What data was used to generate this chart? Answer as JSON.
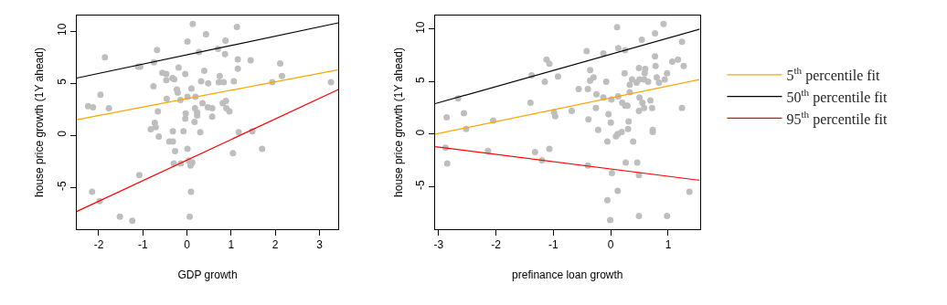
{
  "chart_data": [
    {
      "type": "scatter",
      "xlabel": "GDP growth",
      "ylabel": "house price growth (1Y ahead)",
      "xlim": [
        -2.5,
        3.43
      ],
      "xticks": [
        -2,
        -1,
        0,
        1,
        2,
        3
      ],
      "ylim": [
        -9.0,
        11.5
      ],
      "yticks": [
        -5,
        0,
        5,
        10
      ],
      "legend": "right",
      "series": [
        {
          "marker": "circle",
          "color": "#bebebe",
          "x": [
            0.13,
            1.13,
            0.43,
            0.01,
            0.87,
            -0.68,
            0.27,
            0.7,
            0.86,
            -1.86,
            1.15,
            1.44,
            -0.75,
            2.11,
            -1.11,
            -1.06,
            -0.19,
            1.15,
            0.39,
            -0.56,
            -0.47,
            -0.04,
            0.74,
            -0.33,
            2.15,
            0.32,
            -0.47,
            -0.29,
            0.48,
            0.72,
            0.83,
            1.06,
            1.93,
            3.26,
            -0.76,
            0.1,
            -0.23,
            -0.21,
            -1.96,
            0.01,
            0.19,
            -0.46,
            -0.15,
            0.88,
            0.35,
            0.81,
            -2.24,
            -2.13,
            -1.77,
            0.18,
            0.47,
            0.57,
            0.89,
            -0.66,
            0.23,
            0.96,
            -0.03,
            0.23,
            0.57,
            -0.04,
            0.17,
            -0.73,
            -0.71,
            -0.82,
            -0.08,
            -0.32,
            1.48,
            1.17,
            0.3,
            -0.64,
            -0.4,
            -0.32,
            0.01,
            1.7,
            -0.27,
            1.04,
            -0.3,
            -0.14,
            0.04,
            0.12,
            0.08,
            -1.08,
            -2.15,
            0.09,
            -1.98,
            -1.52,
            -1.24,
            0.06
          ],
          "values": [
            10.7,
            10.4,
            9.7,
            9.0,
            9.1,
            8.2,
            8.0,
            8.3,
            7.8,
            7.5,
            7.3,
            7.2,
            7.0,
            6.9,
            6.6,
            6.6,
            6.5,
            6.4,
            6.2,
            6.0,
            5.9,
            5.9,
            5.7,
            5.5,
            5.7,
            5.2,
            5.3,
            5.4,
            5.0,
            5.1,
            5.1,
            5.2,
            5.1,
            5.1,
            4.7,
            4.5,
            4.4,
            4.1,
            3.9,
            3.7,
            3.7,
            3.5,
            3.4,
            3.3,
            3.1,
            3.1,
            2.8,
            2.7,
            2.6,
            2.6,
            2.7,
            2.6,
            2.6,
            2.3,
            2.2,
            2.3,
            2.1,
            1.9,
            1.8,
            1.6,
            1.3,
            1.2,
            0.8,
            0.6,
            0.4,
            0.4,
            0.4,
            0.3,
            0.3,
            -0.1,
            -0.6,
            -0.6,
            -1.3,
            -1.3,
            -1.5,
            -1.7,
            -2.7,
            -2.7,
            -2.4,
            -2.6,
            -2.9,
            -3.8,
            -5.4,
            -5.4,
            -6.3,
            -7.8,
            -8.2,
            -7.8
          ]
        },
        {
          "type": "line",
          "name": "5$^{th}$ percentile fit",
          "color": "#ffa500",
          "x": [
            -2.5,
            3.43
          ],
          "values": [
            1.5,
            6.3
          ]
        },
        {
          "type": "line",
          "name": "50$^{th}$ percentile fit",
          "color": "#000000",
          "x": [
            -2.5,
            3.43
          ],
          "values": [
            5.5,
            10.8
          ]
        },
        {
          "type": "line",
          "name": "95$^{th}$ percentile fit",
          "color": "#ff0000",
          "x": [
            -2.5,
            3.43
          ],
          "values": [
            -7.3,
            4.4
          ]
        }
      ]
    },
    {
      "type": "scatter",
      "xlabel": "prefinance loan growth",
      "ylabel": "house price growth (1Y ahead)",
      "xlim": [
        -3.06,
        1.55
      ],
      "xticks": [
        -3,
        -2,
        -1,
        0,
        1
      ],
      "ylim": [
        -9.06,
        11.3
      ],
      "yticks": [
        -5,
        0,
        5,
        10
      ],
      "series": [
        {
          "marker": "circle",
          "color": "#bebebe",
          "x": [
            0.92,
            0.11,
            0.54,
            0.77,
            1.24,
            0.13,
            0.25,
            -0.42,
            -0.13,
            0.77,
            1.17,
            1.07,
            -1.12,
            -1.07,
            1.27,
            0.78,
            0.49,
            0.6,
            -0.36,
            0.59,
            0.24,
            0.98,
            -1.38,
            -0.92,
            -0.3,
            0.8,
            0.37,
            0.5,
            0.58,
            0.94,
            -0.36,
            -0.08,
            0.65,
            -1.15,
            0.45,
            0.84,
            0.33,
            -0.56,
            -0.4,
            -0.25,
            0.13,
            -0.13,
            0.5,
            0.01,
            0.33,
            0.69,
            -2.66,
            -1.4,
            0.2,
            0.55,
            0.25,
            0.29,
            -0.26,
            0.58,
            0.72,
            1.24,
            0.49,
            -0.99,
            -0.68,
            -0.97,
            -0.04,
            -0.39,
            -2.86,
            -2.56,
            -2.05,
            -2.52,
            0.0,
            0.31,
            0.3,
            -0.22,
            0.19,
            0.12,
            0.73,
            0.73,
            0.09,
            -0.06,
            0.39,
            -2.88,
            -2.14,
            -1.32,
            -1.07,
            -2.85,
            -1.2,
            -0.4,
            0.26,
            0.46,
            0.49,
            0.02,
            0.12,
            1.37,
            -0.06,
            -0.01,
            0.49,
            0.98
          ],
          "values": [
            10.5,
            10.2,
            9.0,
            9.6,
            8.8,
            8.2,
            8.0,
            7.9,
            7.7,
            7.4,
            7.1,
            6.9,
            7.1,
            6.7,
            6.5,
            6.5,
            6.3,
            6.2,
            6.1,
            5.8,
            5.8,
            5.8,
            5.6,
            5.5,
            5.4,
            5.4,
            5.2,
            5.2,
            5.2,
            5.2,
            5.1,
            5.0,
            5.0,
            5.0,
            4.9,
            4.9,
            4.7,
            4.3,
            4.3,
            3.8,
            3.6,
            3.5,
            3.5,
            3.3,
            4.0,
            3.2,
            3.4,
            3.0,
            3.0,
            3.0,
            2.7,
            2.7,
            2.5,
            2.5,
            2.5,
            2.5,
            2.2,
            2.1,
            2.2,
            1.7,
            1.9,
            1.4,
            1.6,
            2.0,
            1.3,
            0.5,
            1.1,
            1.2,
            0.5,
            0.4,
            0.2,
            0.0,
            0.2,
            0.4,
            -0.2,
            -0.7,
            -0.7,
            -1.3,
            -1.6,
            -1.7,
            -1.4,
            -2.8,
            -2.5,
            -3.0,
            -2.7,
            -2.7,
            -3.9,
            -3.7,
            -5.4,
            -5.5,
            -6.3,
            -8.2,
            -7.8,
            -7.8
          ]
        },
        {
          "type": "line",
          "color": "#ffa500",
          "x": [
            -3.06,
            1.55
          ],
          "values": [
            0.0,
            5.2
          ]
        },
        {
          "type": "line",
          "color": "#000000",
          "x": [
            -3.06,
            1.55
          ],
          "values": [
            2.9,
            10.0
          ]
        },
        {
          "type": "line",
          "color": "#ff0000",
          "x": [
            -3.06,
            1.55
          ],
          "values": [
            -1.2,
            -4.4
          ]
        }
      ]
    }
  ]
}
